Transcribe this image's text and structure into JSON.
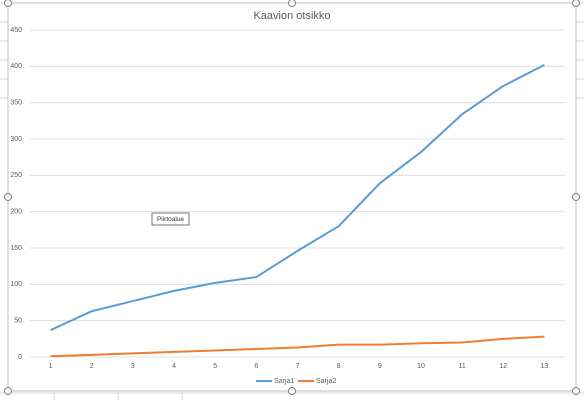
{
  "chart_data": {
    "type": "line",
    "title": "Kaavion otsikko",
    "categories": [
      "1",
      "2",
      "3",
      "4",
      "5",
      "6",
      "7",
      "8",
      "9",
      "10",
      "11",
      "12",
      "13"
    ],
    "series": [
      {
        "name": "Sarja1",
        "color": "#5b9bd5",
        "values": [
          37,
          63,
          77,
          91,
          102,
          110,
          146,
          180,
          239,
          282,
          334,
          373,
          402
        ]
      },
      {
        "name": "Sarja2",
        "color": "#ed7d31",
        "values": [
          1,
          3,
          5,
          7,
          9,
          11,
          13,
          17,
          17,
          19,
          20,
          25,
          28
        ]
      }
    ],
    "ylim": [
      0,
      450
    ],
    "yticks": [
      0,
      50,
      100,
      150,
      200,
      250,
      300,
      350,
      400,
      450
    ],
    "grid": true,
    "legend": "bottom",
    "tooltip": "Piirtoalue"
  }
}
